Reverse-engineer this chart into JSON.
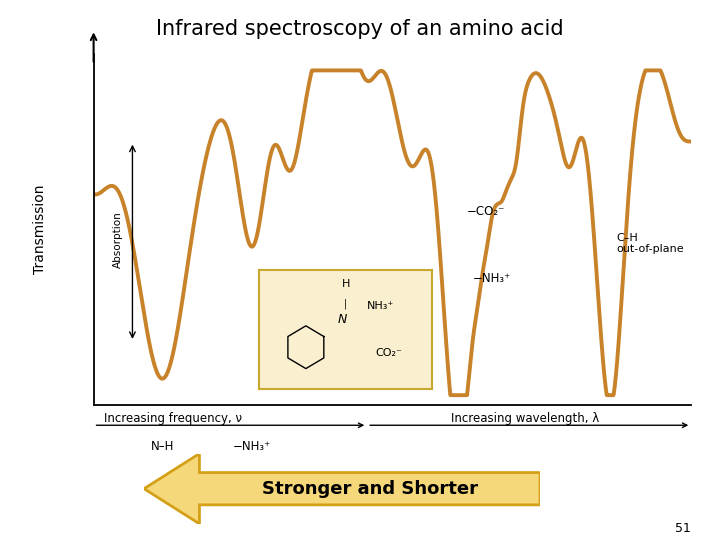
{
  "title": "Infrared spectroscopy of an amino acid",
  "title_fontsize": 15,
  "background_color": "#ffffff",
  "line_color": "#c8832a",
  "line_width": 2.8,
  "ylabel": "Transmission",
  "xlabel_left": "Increasing frequency, ν",
  "xlabel_right": "Increasing wavelength, λ",
  "arrow_fill_color": "#f5d87a",
  "arrow_edge_color": "#d4a017",
  "arrow_label": "Stronger and Shorter",
  "arrow_label_fontsize": 13,
  "label_absorption": "Absorption",
  "num51": "51"
}
